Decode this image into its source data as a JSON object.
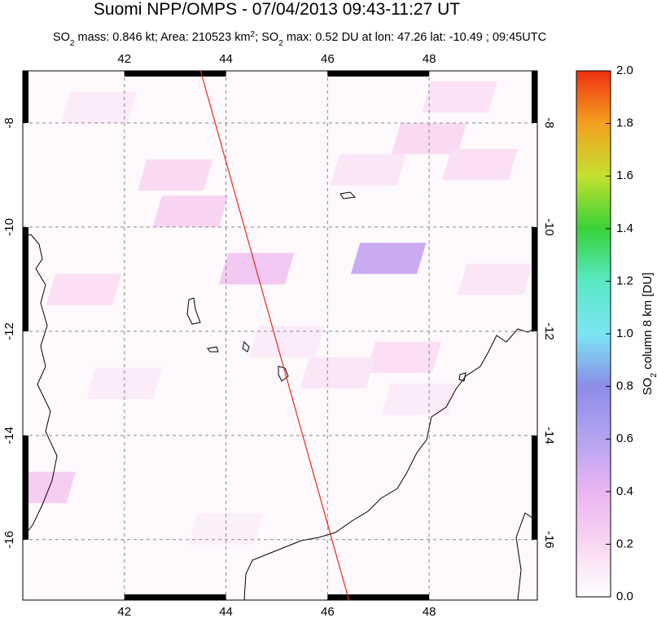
{
  "chart_data": {
    "type": "map",
    "title": "Suomi NPP/OMPS - 07/04/2013 09:43-11:27 UT",
    "subtitle": [
      {
        "text": "SO"
      },
      {
        "text": "2",
        "shift": "sub"
      },
      {
        "text": " mass: 0.846 kt; Area: 210523 km"
      },
      {
        "text": "2",
        "shift": "super"
      },
      {
        "text": "; SO"
      },
      {
        "text": "2",
        "shift": "sub"
      },
      {
        "text": " max: 0.52 DU at lon: 47.26 lat: -10.49 ; 09:45UTC"
      }
    ],
    "xlim": [
      40,
      50.13
    ],
    "ylim": [
      -17.16,
      -7
    ],
    "xticks": [
      42,
      44,
      46,
      48
    ],
    "yticks": [
      -8,
      -10,
      -12,
      -14,
      -16
    ],
    "grid": true,
    "track": {
      "lon": [
        43.5,
        46.42
      ],
      "lat": [
        -7,
        -17.16
      ],
      "color": "#e8281e"
    },
    "patches": {
      "lon": [
        43.0,
        43.3,
        44.6,
        47.2,
        48.0,
        49.0,
        47.5,
        46.2,
        41.2,
        40.3,
        45.2,
        49.3,
        47.8,
        42.0,
        44.0,
        46.8,
        41.5,
        48.6
      ],
      "lat": [
        -9.0,
        -9.7,
        -10.8,
        -10.6,
        -8.3,
        -8.8,
        -12.5,
        -12.8,
        -11.2,
        -15.0,
        -12.2,
        -11.0,
        -13.3,
        -13.0,
        -15.8,
        -8.9,
        -7.7,
        -7.5
      ],
      "values": [
        0.18,
        0.22,
        0.28,
        0.52,
        0.18,
        0.15,
        0.15,
        0.12,
        0.15,
        0.25,
        0.1,
        0.12,
        0.1,
        0.1,
        0.08,
        0.12,
        0.1,
        0.14
      ]
    },
    "colorbar": {
      "label": [
        {
          "text": "SO"
        },
        {
          "text": "2",
          "shift": "sub"
        },
        {
          "text": " column 8 km [DU]"
        }
      ],
      "zlim": [
        0,
        2.0
      ],
      "ticks": [
        {
          "value": 0,
          "label": "0.0"
        },
        0.2,
        0.4,
        0.6,
        0.8,
        {
          "value": 1,
          "label": "1.0"
        },
        1.2,
        1.4,
        1.6,
        1.8,
        {
          "value": 2,
          "label": "2.0"
        }
      ],
      "colormap": [
        "#ffffff",
        "#f9d6f2",
        "#eab4f2",
        "#b4a4f0",
        "#8c8ce8",
        "#7ce6f4",
        "#58e8c4",
        "#38d238",
        "#c4e030",
        "#f4a020",
        "#f03010"
      ]
    }
  }
}
